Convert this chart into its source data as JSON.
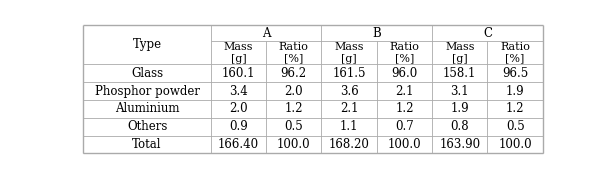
{
  "col_groups": [
    "A",
    "B",
    "C"
  ],
  "sub_cols": [
    "Mass\n[g]",
    "Ratio\n[%]"
  ],
  "row_labels": [
    "Type",
    "Glass",
    "Phosphor powder",
    "Aluminium",
    "Others",
    "Total"
  ],
  "table_data": [
    [
      "160.1",
      "96.2",
      "161.5",
      "96.0",
      "158.1",
      "96.5"
    ],
    [
      "3.4",
      "2.0",
      "3.6",
      "2.1",
      "3.1",
      "1.9"
    ],
    [
      "2.0",
      "1.2",
      "2.1",
      "1.2",
      "1.9",
      "1.2"
    ],
    [
      "0.9",
      "0.5",
      "1.1",
      "0.7",
      "0.8",
      "0.5"
    ],
    [
      "166.40",
      "100.0",
      "168.20",
      "100.0",
      "163.90",
      "100.0"
    ]
  ],
  "background_color": "#ffffff",
  "line_color": "#aaaaaa",
  "font_size": 8.5,
  "col_widths_rel": [
    2.3,
    1.0,
    1.0,
    1.0,
    1.0,
    1.0,
    1.0
  ],
  "row_heights_rel": [
    0.9,
    1.3,
    1.0,
    1.0,
    1.0,
    1.0,
    1.0
  ],
  "outer_lw": 1.0,
  "inner_lw": 0.6
}
